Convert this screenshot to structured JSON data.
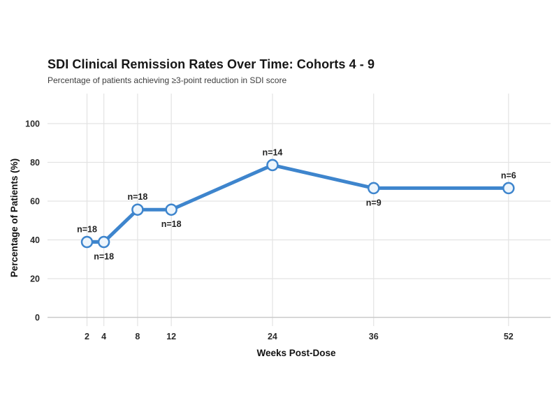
{
  "header": {
    "title": "SDI Clinical Remission Rates Over Time: Cohorts 4 - 9",
    "subtitle": "Percentage of patients achieving ≥3-point reduction in SDI score"
  },
  "chart_data": {
    "type": "line",
    "title": "SDI Clinical Remission Rates Over Time: Cohorts 4 - 9",
    "subtitle": "Percentage of patients achieving ≥3-point reduction in SDI score",
    "xlabel": "Weeks Post-Dose",
    "ylabel": "Percentage of Patients (%)",
    "x_ticks": [
      2,
      4,
      8,
      12,
      24,
      36,
      52
    ],
    "y_ticks": [
      0,
      20,
      40,
      60,
      80,
      100
    ],
    "ylim": [
      0,
      115
    ],
    "grid": "on",
    "legend": "none",
    "series": [
      {
        "name": "Remission rate",
        "points": [
          {
            "x": 2,
            "y": 38.9,
            "label": "n=18",
            "label_position": "above"
          },
          {
            "x": 4,
            "y": 38.9,
            "label": "n=18",
            "label_position": "below"
          },
          {
            "x": 8,
            "y": 55.6,
            "label": "n=18",
            "label_position": "above"
          },
          {
            "x": 12,
            "y": 55.6,
            "label": "n=18",
            "label_position": "below"
          },
          {
            "x": 24,
            "y": 78.6,
            "label": "n=14",
            "label_position": "above"
          },
          {
            "x": 36,
            "y": 66.7,
            "label": "n=9",
            "label_position": "below"
          },
          {
            "x": 52,
            "y": 66.7,
            "label": "n=6",
            "label_position": "above"
          }
        ]
      }
    ],
    "colors": {
      "line": "#3e85cd",
      "marker_fill": "#edf5fc",
      "marker_stroke": "#3e85cd",
      "gridline": "#e3e3e3",
      "axis_line": "#c9c9c9",
      "tick_text": "#2b2b2b",
      "annotation_text": "#222222",
      "axis_title_text": "#111111"
    }
  }
}
